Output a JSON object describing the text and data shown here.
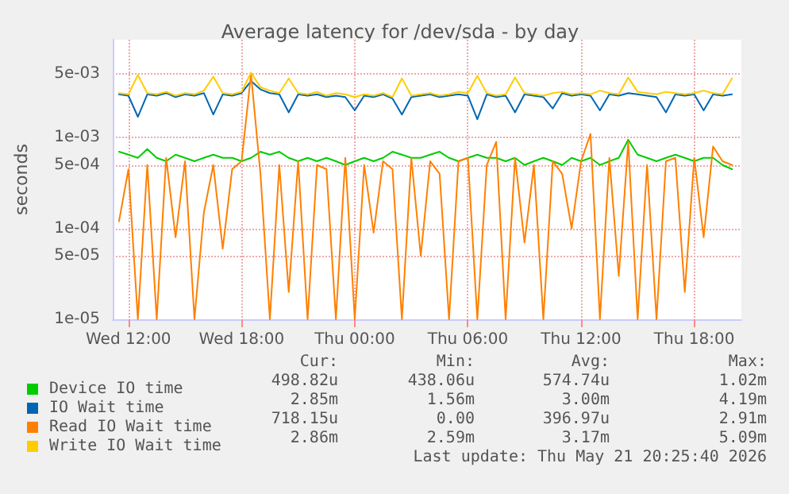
{
  "chart_data": {
    "type": "line",
    "title": "Average latency for /dev/sda - by day",
    "ylabel": "seconds",
    "log": "y",
    "grid": true,
    "legend": "bottom left",
    "marker": "none",
    "line_style": "solid",
    "x": [
      "2026-05-20T11:30",
      "2026-05-20T12:00",
      "2026-05-20T12:30",
      "2026-05-20T13:00",
      "2026-05-20T13:30",
      "2026-05-20T14:00",
      "2026-05-20T14:30",
      "2026-05-20T15:00",
      "2026-05-20T15:30",
      "2026-05-20T16:00",
      "2026-05-20T16:30",
      "2026-05-20T17:00",
      "2026-05-20T17:30",
      "2026-05-20T18:00",
      "2026-05-20T18:30",
      "2026-05-20T19:00",
      "2026-05-20T19:30",
      "2026-05-20T20:00",
      "2026-05-20T20:30",
      "2026-05-20T21:00",
      "2026-05-20T21:30",
      "2026-05-20T22:00",
      "2026-05-20T22:30",
      "2026-05-20T23:00",
      "2026-05-20T23:30",
      "2026-05-21T00:00",
      "2026-05-21T00:30",
      "2026-05-21T01:00",
      "2026-05-21T01:30",
      "2026-05-21T02:00",
      "2026-05-21T02:30",
      "2026-05-21T03:00",
      "2026-05-21T03:30",
      "2026-05-21T04:00",
      "2026-05-21T04:30",
      "2026-05-21T05:00",
      "2026-05-21T05:30",
      "2026-05-21T06:00",
      "2026-05-21T06:30",
      "2026-05-21T07:00",
      "2026-05-21T07:30",
      "2026-05-21T08:00",
      "2026-05-21T08:30",
      "2026-05-21T09:00",
      "2026-05-21T09:30",
      "2026-05-21T10:00",
      "2026-05-21T10:30",
      "2026-05-21T11:00",
      "2026-05-21T11:30",
      "2026-05-21T12:00",
      "2026-05-21T12:30",
      "2026-05-21T13:00",
      "2026-05-21T13:30",
      "2026-05-21T14:00",
      "2026-05-21T14:30",
      "2026-05-21T15:00",
      "2026-05-21T15:30",
      "2026-05-21T16:00",
      "2026-05-21T16:30",
      "2026-05-21T17:00",
      "2026-05-21T17:30",
      "2026-05-21T18:00",
      "2026-05-21T18:30",
      "2026-05-21T19:00",
      "2026-05-21T19:30",
      "2026-05-21T20:00"
    ],
    "xlim": [
      "2026-05-20T11:10",
      "2026-05-21T20:30"
    ],
    "xticks": [
      {
        "value": "2026-05-20T12:00",
        "label": "Wed 12:00"
      },
      {
        "value": "2026-05-20T18:00",
        "label": "Wed 18:00"
      },
      {
        "value": "2026-05-21T00:00",
        "label": "Thu 00:00"
      },
      {
        "value": "2026-05-21T06:00",
        "label": "Thu 06:00"
      },
      {
        "value": "2026-05-21T12:00",
        "label": "Thu 12:00"
      },
      {
        "value": "2026-05-21T18:00",
        "label": "Thu 18:00"
      }
    ],
    "ylim": [
      1e-05,
      0.012
    ],
    "yticks": [
      {
        "value": 1e-05,
        "label": "1e-05"
      },
      {
        "value": 5e-05,
        "label": "5e-05"
      },
      {
        "value": 0.0001,
        "label": "1e-04"
      },
      {
        "value": 0.0005,
        "label": "5e-04"
      },
      {
        "value": 0.001,
        "label": "1e-03"
      },
      {
        "value": 0.005,
        "label": "5e-03"
      }
    ],
    "series": [
      {
        "name": "Device IO time",
        "color": "#00cc00",
        "values": [
          0.0007,
          0.00065,
          0.0006,
          0.00075,
          0.0006,
          0.00055,
          0.00065,
          0.0006,
          0.00055,
          0.0006,
          0.00065,
          0.0006,
          0.0006,
          0.00055,
          0.0006,
          0.0007,
          0.00065,
          0.0007,
          0.0006,
          0.00055,
          0.0006,
          0.00055,
          0.0006,
          0.00055,
          0.0005,
          0.00055,
          0.0006,
          0.00055,
          0.0006,
          0.0007,
          0.00065,
          0.0006,
          0.0006,
          0.00065,
          0.0007,
          0.0006,
          0.00055,
          0.0006,
          0.00065,
          0.0006,
          0.0006,
          0.00055,
          0.0006,
          0.0005,
          0.00055,
          0.0006,
          0.00055,
          0.0005,
          0.0006,
          0.00055,
          0.0006,
          0.0005,
          0.00055,
          0.0006,
          0.00095,
          0.00065,
          0.0006,
          0.00055,
          0.0006,
          0.00065,
          0.0006,
          0.00055,
          0.0006,
          0.0006,
          0.0005,
          0.00045
        ]
      },
      {
        "name": "IO Wait time",
        "color": "#0066b3",
        "values": [
          0.003,
          0.0029,
          0.0017,
          0.003,
          0.0029,
          0.0031,
          0.0028,
          0.003,
          0.0029,
          0.0031,
          0.0018,
          0.003,
          0.0029,
          0.0031,
          0.0042,
          0.0034,
          0.0031,
          0.003,
          0.0019,
          0.003,
          0.0029,
          0.003,
          0.0028,
          0.0029,
          0.0028,
          0.002,
          0.0029,
          0.0028,
          0.003,
          0.0027,
          0.0018,
          0.0028,
          0.0029,
          0.003,
          0.0028,
          0.0029,
          0.003,
          0.0029,
          0.0016,
          0.003,
          0.0028,
          0.0029,
          0.0019,
          0.003,
          0.0029,
          0.0028,
          0.0021,
          0.0031,
          0.0029,
          0.003,
          0.0029,
          0.002,
          0.003,
          0.0029,
          0.0031,
          0.003,
          0.0029,
          0.0028,
          0.0019,
          0.003,
          0.0029,
          0.003,
          0.002,
          0.003,
          0.0029,
          0.003
        ]
      },
      {
        "name": "Read IO Wait time",
        "color": "#ff8000",
        "values": [
          0.00012,
          0.00045,
          1e-05,
          0.0005,
          1e-05,
          0.0006,
          8e-05,
          0.00055,
          1e-05,
          0.00015,
          0.0005,
          6e-05,
          0.00045,
          0.00055,
          0.005,
          0.0004,
          1e-05,
          0.0005,
          2e-05,
          0.00055,
          1e-05,
          0.0005,
          0.00045,
          1e-05,
          0.0006,
          1e-05,
          0.0005,
          9e-05,
          0.00055,
          0.00045,
          1e-05,
          0.0006,
          5e-05,
          0.00055,
          0.0004,
          1e-05,
          0.00055,
          0.0006,
          1e-05,
          0.0005,
          0.0009,
          1e-05,
          0.0006,
          7e-05,
          0.0005,
          1e-05,
          0.00055,
          0.0004,
          0.0001,
          0.00055,
          0.0011,
          1e-05,
          0.0006,
          3e-05,
          0.0009,
          1e-05,
          0.0005,
          1e-05,
          0.00055,
          0.0006,
          2e-05,
          0.0006,
          8e-05,
          0.0008,
          0.00055,
          0.0005
        ]
      },
      {
        "name": "Write IO Wait time",
        "color": "#ffcc00",
        "values": [
          0.0031,
          0.003,
          0.0049,
          0.0031,
          0.003,
          0.0032,
          0.0029,
          0.0031,
          0.003,
          0.0033,
          0.0047,
          0.0031,
          0.003,
          0.0032,
          0.0052,
          0.0036,
          0.0033,
          0.0031,
          0.0045,
          0.0031,
          0.003,
          0.0032,
          0.0029,
          0.0031,
          0.003,
          0.0028,
          0.003,
          0.0029,
          0.0031,
          0.0028,
          0.0045,
          0.0029,
          0.003,
          0.0031,
          0.0029,
          0.003,
          0.0032,
          0.0031,
          0.0048,
          0.0031,
          0.0029,
          0.003,
          0.0046,
          0.0031,
          0.003,
          0.0029,
          0.0031,
          0.0032,
          0.003,
          0.0031,
          0.003,
          0.0033,
          0.0031,
          0.003,
          0.0046,
          0.0032,
          0.0031,
          0.003,
          0.0032,
          0.0031,
          0.003,
          0.0031,
          0.0033,
          0.0031,
          0.003,
          0.0045
        ]
      }
    ],
    "annotations": [
      "Cur:",
      "Min:",
      "Avg:",
      "Max:",
      "498.82u",
      "438.06u",
      "574.74u",
      "1.02m",
      "2.85m",
      "1.56m",
      "3.00m",
      "4.19m",
      "718.15u",
      "0.00",
      "396.97u",
      "2.91m",
      "2.86m",
      "2.59m",
      "3.17m",
      "5.09m",
      "Last update: Thu May 21 20:25:40 2026"
    ]
  }
}
